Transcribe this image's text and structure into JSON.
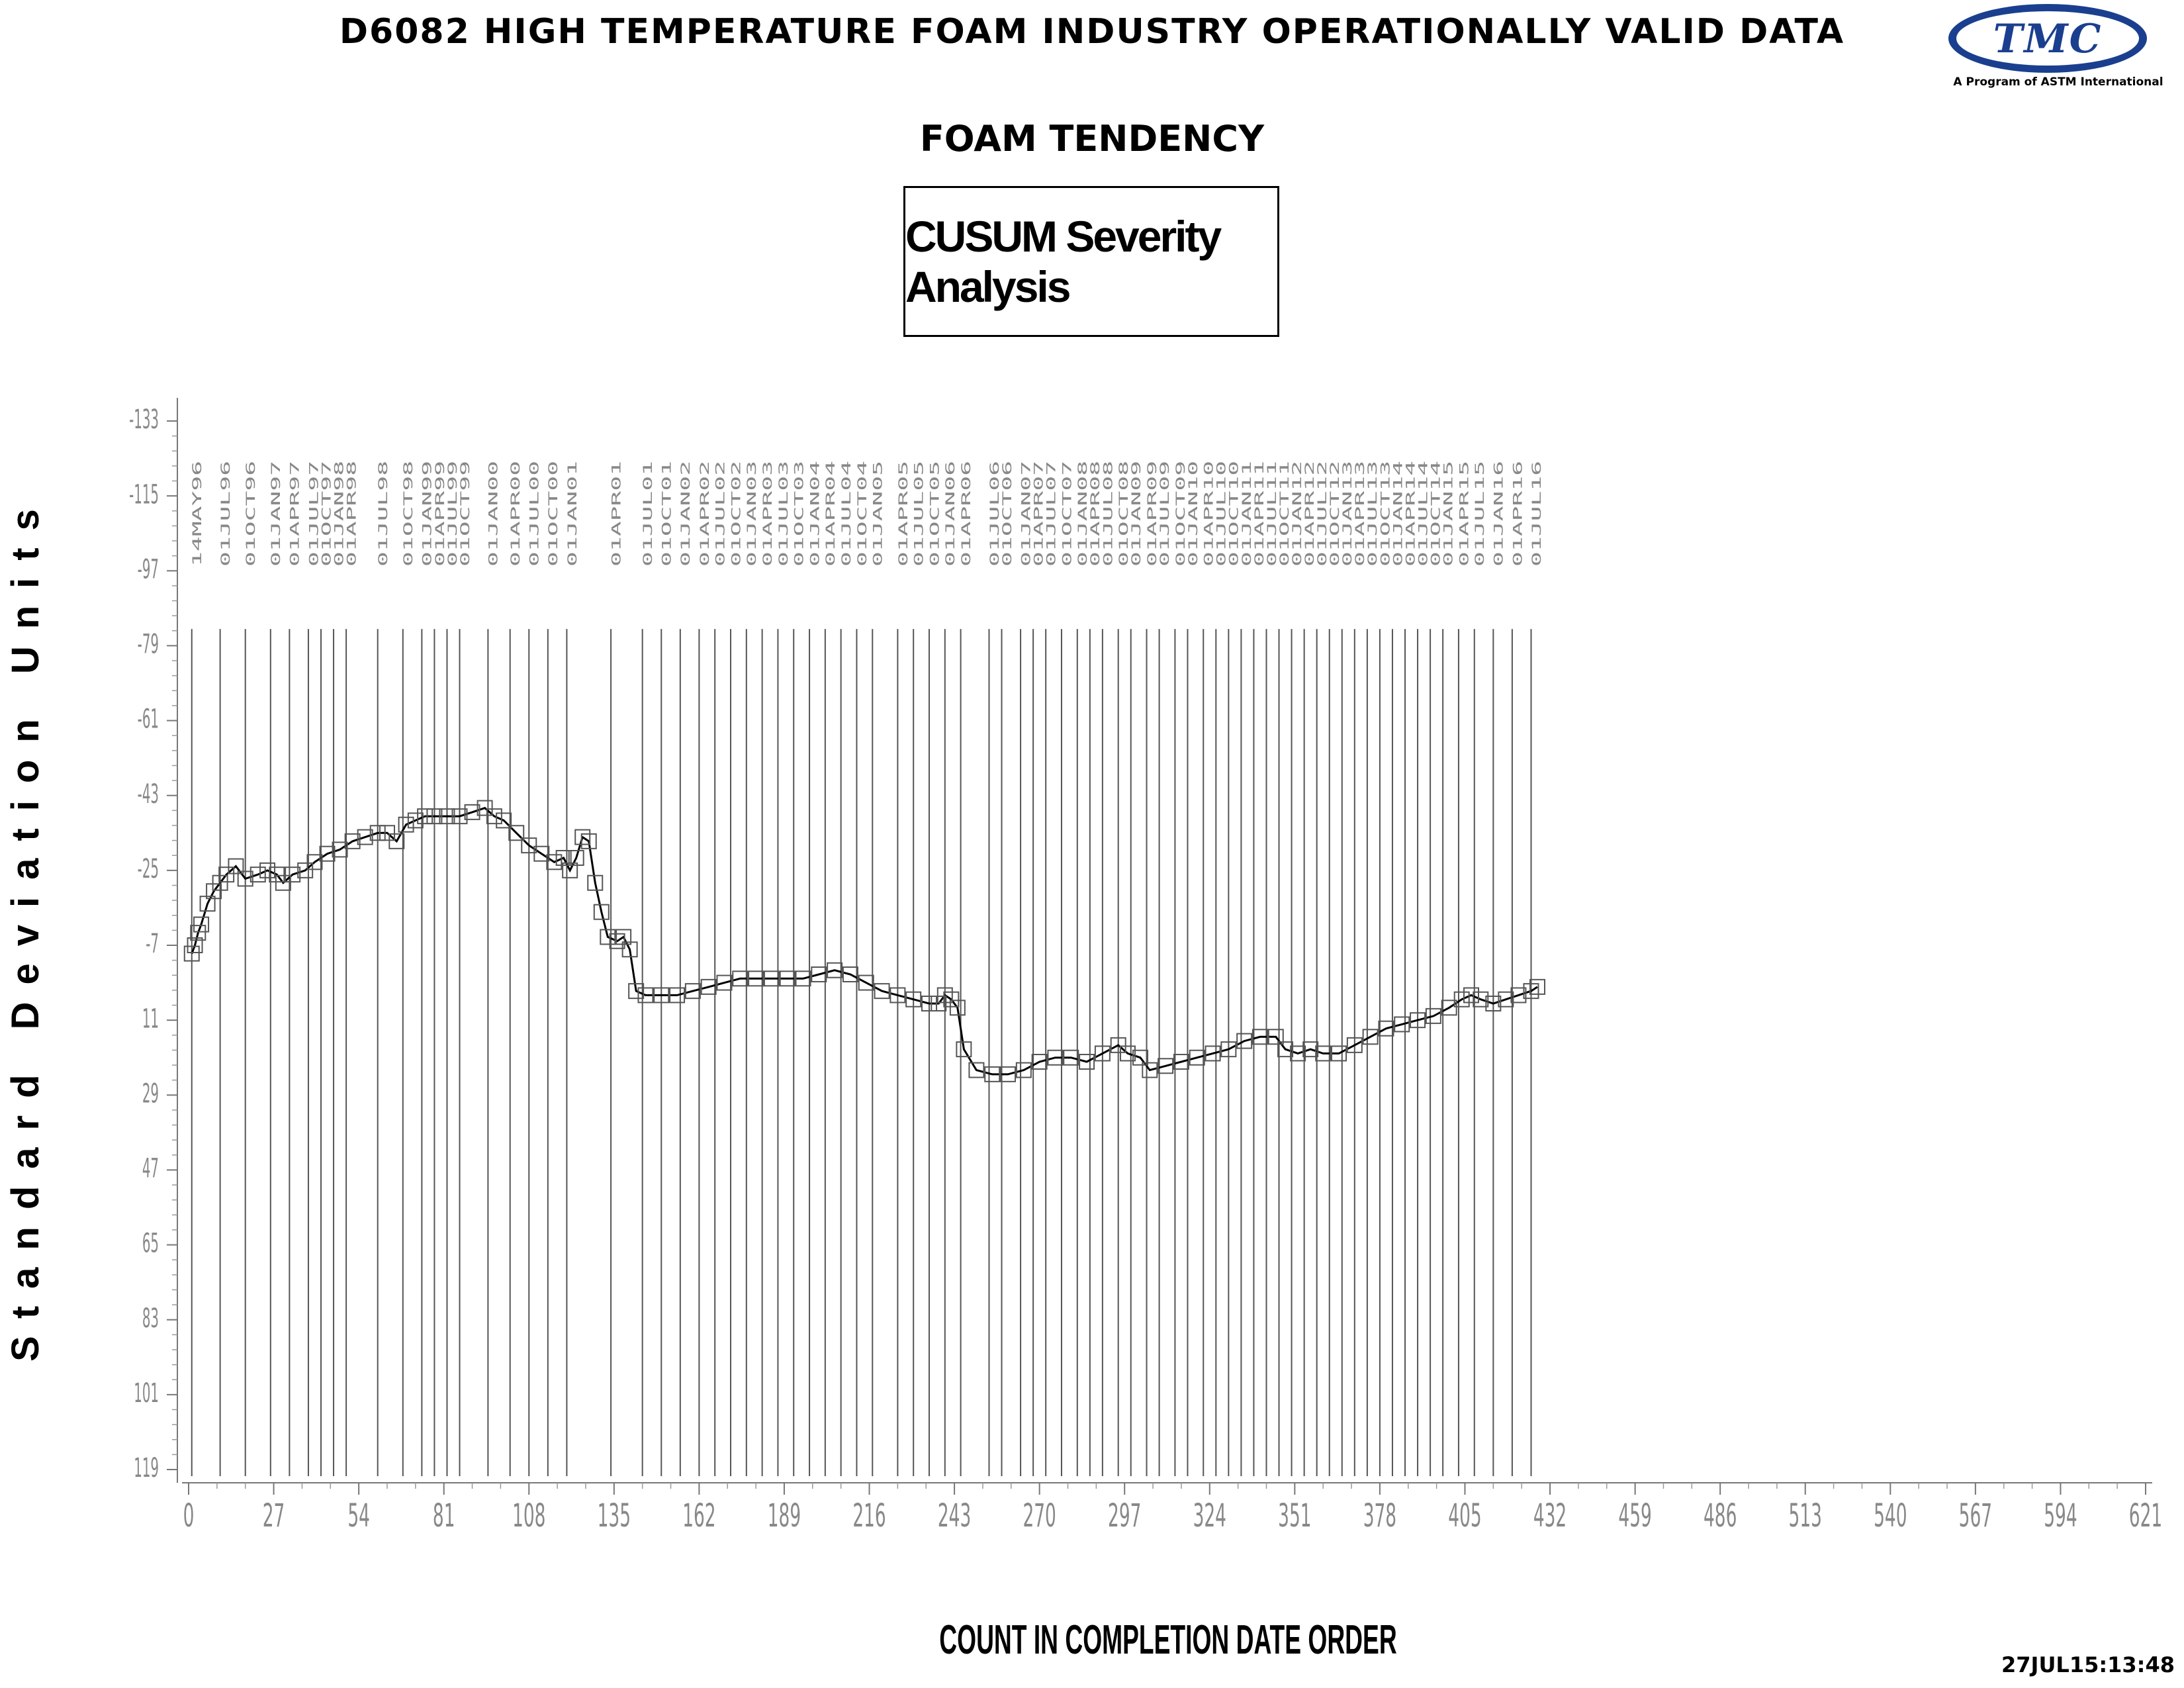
{
  "header": {
    "title": "D6082 HIGH TEMPERATURE FOAM INDUSTRY OPERATIONALLY VALID DATA",
    "subtitle": "FOAM TENDENCY",
    "box_label": "CUSUM Severity Analysis",
    "logo_text": "TMC",
    "logo_tagline": "A Program of ASTM International"
  },
  "footer": {
    "timestamp": "27JUL15:13:48"
  },
  "chart_data": {
    "type": "line",
    "xlabel": "COUNT IN COMPLETION DATE ORDER",
    "ylabel": "Standard Deviation Units",
    "xlim": [
      0,
      621
    ],
    "ylim": [
      -133,
      119
    ],
    "y_inverted": true,
    "xticks": [
      0,
      27,
      54,
      81,
      108,
      135,
      162,
      189,
      216,
      243,
      270,
      297,
      324,
      351,
      378,
      405,
      432,
      459,
      486,
      513,
      540,
      567,
      594,
      621
    ],
    "yticks": [
      -133,
      -115,
      -97,
      -79,
      -61,
      -43,
      -25,
      -7,
      11,
      29,
      47,
      65,
      83,
      101,
      119
    ],
    "marker": "square",
    "date_markers": [
      {
        "x": 1,
        "label": "14MAY96"
      },
      {
        "x": 10,
        "label": "01JUL96"
      },
      {
        "x": 18,
        "label": "01OCT96"
      },
      {
        "x": 26,
        "label": "01JAN97"
      },
      {
        "x": 32,
        "label": "01APR97"
      },
      {
        "x": 38,
        "label": "01JUL97"
      },
      {
        "x": 42,
        "label": "01OCT97"
      },
      {
        "x": 46,
        "label": "01JAN98"
      },
      {
        "x": 50,
        "label": "01APR98"
      },
      {
        "x": 60,
        "label": "01JUL98"
      },
      {
        "x": 68,
        "label": "01OCT98"
      },
      {
        "x": 74,
        "label": "01JAN99"
      },
      {
        "x": 78,
        "label": "01APR99"
      },
      {
        "x": 82,
        "label": "01JUL99"
      },
      {
        "x": 86,
        "label": "01OCT99"
      },
      {
        "x": 95,
        "label": "01JAN00"
      },
      {
        "x": 102,
        "label": "01APR00"
      },
      {
        "x": 108,
        "label": "01JUL00"
      },
      {
        "x": 114,
        "label": "01OCT00"
      },
      {
        "x": 120,
        "label": "01JAN01"
      },
      {
        "x": 134,
        "label": "01APR01"
      },
      {
        "x": 144,
        "label": "01JUL01"
      },
      {
        "x": 150,
        "label": "01OCT01"
      },
      {
        "x": 156,
        "label": "01JAN02"
      },
      {
        "x": 162,
        "label": "01APR02"
      },
      {
        "x": 167,
        "label": "01JUL02"
      },
      {
        "x": 172,
        "label": "01OCT02"
      },
      {
        "x": 177,
        "label": "01JAN03"
      },
      {
        "x": 182,
        "label": "01APR03"
      },
      {
        "x": 187,
        "label": "01JUL03"
      },
      {
        "x": 192,
        "label": "01OCT03"
      },
      {
        "x": 197,
        "label": "01JAN04"
      },
      {
        "x": 202,
        "label": "01APR04"
      },
      {
        "x": 207,
        "label": "01JUL04"
      },
      {
        "x": 212,
        "label": "01OCT04"
      },
      {
        "x": 217,
        "label": "01JAN05"
      },
      {
        "x": 225,
        "label": "01APR05"
      },
      {
        "x": 230,
        "label": "01JUL05"
      },
      {
        "x": 235,
        "label": "01OCT05"
      },
      {
        "x": 240,
        "label": "01JAN06"
      },
      {
        "x": 245,
        "label": "01APR06"
      },
      {
        "x": 254,
        "label": "01JUL06"
      },
      {
        "x": 258,
        "label": "01OCT06"
      },
      {
        "x": 264,
        "label": "01JAN07"
      },
      {
        "x": 268,
        "label": "01APR07"
      },
      {
        "x": 272,
        "label": "01JUL07"
      },
      {
        "x": 277,
        "label": "01OCT07"
      },
      {
        "x": 282,
        "label": "01JAN08"
      },
      {
        "x": 286,
        "label": "01APR08"
      },
      {
        "x": 290,
        "label": "01JUL08"
      },
      {
        "x": 295,
        "label": "01OCT08"
      },
      {
        "x": 299,
        "label": "01JAN09"
      },
      {
        "x": 304,
        "label": "01APR09"
      },
      {
        "x": 308,
        "label": "01JUL09"
      },
      {
        "x": 313,
        "label": "01OCT09"
      },
      {
        "x": 317,
        "label": "01JAN10"
      },
      {
        "x": 322,
        "label": "01APR10"
      },
      {
        "x": 326,
        "label": "01JUL10"
      },
      {
        "x": 330,
        "label": "01OCT10"
      },
      {
        "x": 334,
        "label": "01JAN11"
      },
      {
        "x": 338,
        "label": "01APR11"
      },
      {
        "x": 342,
        "label": "01JUL11"
      },
      {
        "x": 346,
        "label": "01OCT11"
      },
      {
        "x": 350,
        "label": "01JAN12"
      },
      {
        "x": 354,
        "label": "01APR12"
      },
      {
        "x": 358,
        "label": "01JUL12"
      },
      {
        "x": 362,
        "label": "01OCT12"
      },
      {
        "x": 366,
        "label": "01JAN13"
      },
      {
        "x": 370,
        "label": "01APR13"
      },
      {
        "x": 374,
        "label": "01JUL13"
      },
      {
        "x": 378,
        "label": "01OCT13"
      },
      {
        "x": 382,
        "label": "01JAN14"
      },
      {
        "x": 386,
        "label": "01APR14"
      },
      {
        "x": 390,
        "label": "01JUL14"
      },
      {
        "x": 394,
        "label": "01OCT14"
      },
      {
        "x": 398,
        "label": "01JAN15"
      },
      {
        "x": 403,
        "label": "01APR15"
      },
      {
        "x": 408,
        "label": "01JUL15"
      },
      {
        "x": 414,
        "label": "01JAN16"
      },
      {
        "x": 420,
        "label": "01APR16"
      },
      {
        "x": 426,
        "label": "01JUL16"
      }
    ],
    "series": [
      {
        "points": [
          [
            1,
            -5
          ],
          [
            2,
            -7
          ],
          [
            3,
            -10
          ],
          [
            4,
            -12
          ],
          [
            6,
            -17
          ],
          [
            8,
            -20
          ],
          [
            10,
            -22
          ],
          [
            12,
            -24
          ],
          [
            15,
            -26
          ],
          [
            18,
            -23
          ],
          [
            22,
            -24
          ],
          [
            25,
            -25
          ],
          [
            28,
            -24
          ],
          [
            30,
            -22
          ],
          [
            33,
            -24
          ],
          [
            37,
            -25
          ],
          [
            40,
            -27
          ],
          [
            44,
            -29
          ],
          [
            48,
            -30
          ],
          [
            52,
            -32
          ],
          [
            56,
            -33
          ],
          [
            60,
            -34
          ],
          [
            63,
            -34
          ],
          [
            66,
            -32
          ],
          [
            69,
            -36
          ],
          [
            72,
            -37
          ],
          [
            75,
            -38
          ],
          [
            78,
            -38
          ],
          [
            82,
            -38
          ],
          [
            86,
            -38
          ],
          [
            90,
            -39
          ],
          [
            94,
            -40
          ],
          [
            97,
            -38
          ],
          [
            100,
            -37
          ],
          [
            104,
            -34
          ],
          [
            108,
            -31
          ],
          [
            112,
            -29
          ],
          [
            116,
            -27
          ],
          [
            119,
            -28
          ],
          [
            121,
            -25
          ],
          [
            123,
            -28
          ],
          [
            125,
            -33
          ],
          [
            127,
            -32
          ],
          [
            129,
            -22
          ],
          [
            131,
            -15
          ],
          [
            133,
            -9
          ],
          [
            136,
            -8
          ],
          [
            138,
            -9
          ],
          [
            140,
            -6
          ],
          [
            142,
            4
          ],
          [
            145,
            5
          ],
          [
            150,
            5
          ],
          [
            155,
            5
          ],
          [
            160,
            4
          ],
          [
            165,
            3
          ],
          [
            170,
            2
          ],
          [
            175,
            1
          ],
          [
            180,
            1
          ],
          [
            185,
            1
          ],
          [
            190,
            1
          ],
          [
            195,
            1
          ],
          [
            200,
            0
          ],
          [
            205,
            -1
          ],
          [
            210,
            0
          ],
          [
            215,
            2
          ],
          [
            220,
            4
          ],
          [
            225,
            5
          ],
          [
            230,
            6
          ],
          [
            235,
            7
          ],
          [
            238,
            7
          ],
          [
            240,
            5
          ],
          [
            242,
            6
          ],
          [
            244,
            8
          ],
          [
            246,
            18
          ],
          [
            250,
            23
          ],
          [
            255,
            24
          ],
          [
            260,
            24
          ],
          [
            265,
            23
          ],
          [
            270,
            21
          ],
          [
            275,
            20
          ],
          [
            280,
            20
          ],
          [
            285,
            21
          ],
          [
            290,
            19
          ],
          [
            295,
            17
          ],
          [
            298,
            19
          ],
          [
            302,
            20
          ],
          [
            305,
            23
          ],
          [
            310,
            22
          ],
          [
            315,
            21
          ],
          [
            320,
            20
          ],
          [
            325,
            19
          ],
          [
            330,
            18
          ],
          [
            335,
            16
          ],
          [
            340,
            15
          ],
          [
            345,
            15
          ],
          [
            348,
            18
          ],
          [
            352,
            19
          ],
          [
            356,
            18
          ],
          [
            360,
            19
          ],
          [
            365,
            19
          ],
          [
            370,
            17
          ],
          [
            375,
            15
          ],
          [
            380,
            13
          ],
          [
            385,
            12
          ],
          [
            390,
            11
          ],
          [
            395,
            10
          ],
          [
            400,
            8
          ],
          [
            404,
            6
          ],
          [
            407,
            5
          ],
          [
            410,
            6
          ],
          [
            414,
            7
          ],
          [
            418,
            6
          ],
          [
            422,
            5
          ],
          [
            426,
            4
          ],
          [
            428,
            3
          ]
        ]
      }
    ]
  }
}
